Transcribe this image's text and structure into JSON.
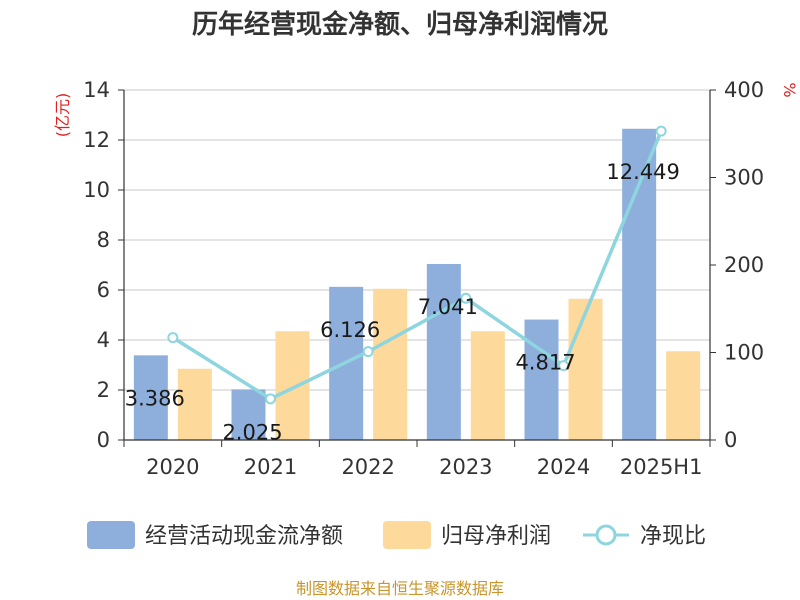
{
  "chart_data": {
    "type": "bar",
    "title": "历年经营现金净额、归母净利润情况",
    "categories": [
      "2020",
      "2021",
      "2022",
      "2023",
      "2024",
      "2025H1"
    ],
    "y_left": {
      "unit": "(亿元)",
      "lim": [
        0,
        14
      ],
      "ticks": [
        "0",
        "2",
        "4",
        "6",
        "8",
        "10",
        "12",
        "14"
      ]
    },
    "y_right": {
      "unit": "%",
      "lim": [
        0,
        400
      ],
      "ticks": [
        "0",
        "100",
        "200",
        "300",
        "400"
      ]
    },
    "series": [
      {
        "name": "经营活动现金流净额",
        "type": "bar",
        "axis": "left",
        "color": "#8eaedb",
        "values": [
          3.386,
          2.025,
          6.126,
          7.041,
          4.817,
          12.449
        ],
        "labels": [
          "3.386",
          "2.025",
          "6.126",
          "7.041",
          "4.817",
          "12.449"
        ]
      },
      {
        "name": "归母净利润",
        "type": "bar",
        "axis": "left",
        "color": "#fdd99b",
        "values": [
          2.85,
          4.35,
          6.05,
          4.35,
          5.65,
          3.55
        ]
      },
      {
        "name": "净现比",
        "type": "line",
        "axis": "right",
        "color": "#8dd5df",
        "values": [
          117,
          47,
          101,
          162,
          85,
          353
        ]
      }
    ],
    "grid": true,
    "legend": "bottom",
    "source": "制图数据来自恒生聚源数据库"
  }
}
